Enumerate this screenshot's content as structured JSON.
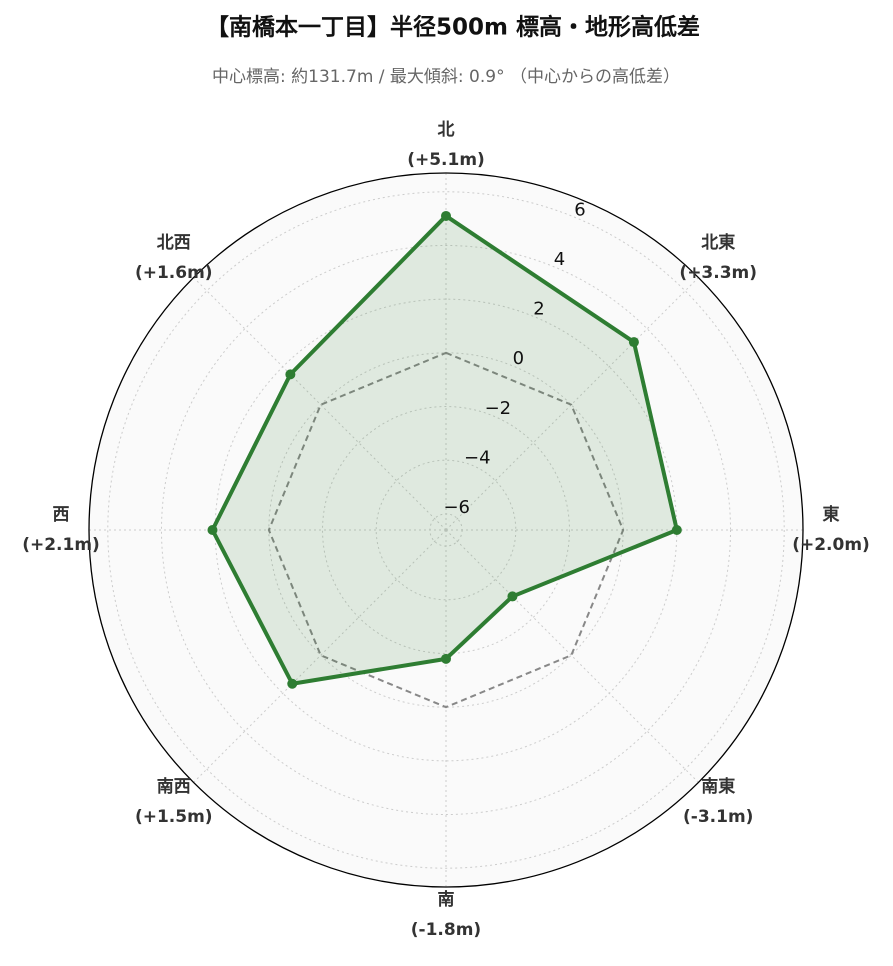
{
  "chart_data": {
    "type": "radar",
    "title": "【南橋本一丁目】半径500m 標高・地形高低差",
    "subtitle": "中心標高: 約131.7m / 最大傾斜: 0.9° （中心からの高低差）",
    "categories": [
      "北",
      "北東",
      "東",
      "南東",
      "南",
      "南西",
      "西",
      "北西"
    ],
    "values": [
      5.1,
      3.3,
      2.0,
      -3.1,
      -1.8,
      1.5,
      2.1,
      1.6
    ],
    "value_labels": [
      "(+5.1m)",
      "(+3.3m)",
      "(+2.0m)",
      "(-3.1m)",
      "(-1.8m)",
      "(+1.5m)",
      "(+2.1m)",
      "(+1.6m)"
    ],
    "color": "#2e7d32",
    "ylim": [
      -6.6,
      6.7
    ],
    "yticks": [
      {
        "value": -6,
        "label": "−6"
      },
      {
        "value": -4,
        "label": "−4"
      },
      {
        "value": -2,
        "label": "−2"
      },
      0,
      2,
      4,
      6
    ],
    "reference_tick": 3,
    "grid": true
  }
}
